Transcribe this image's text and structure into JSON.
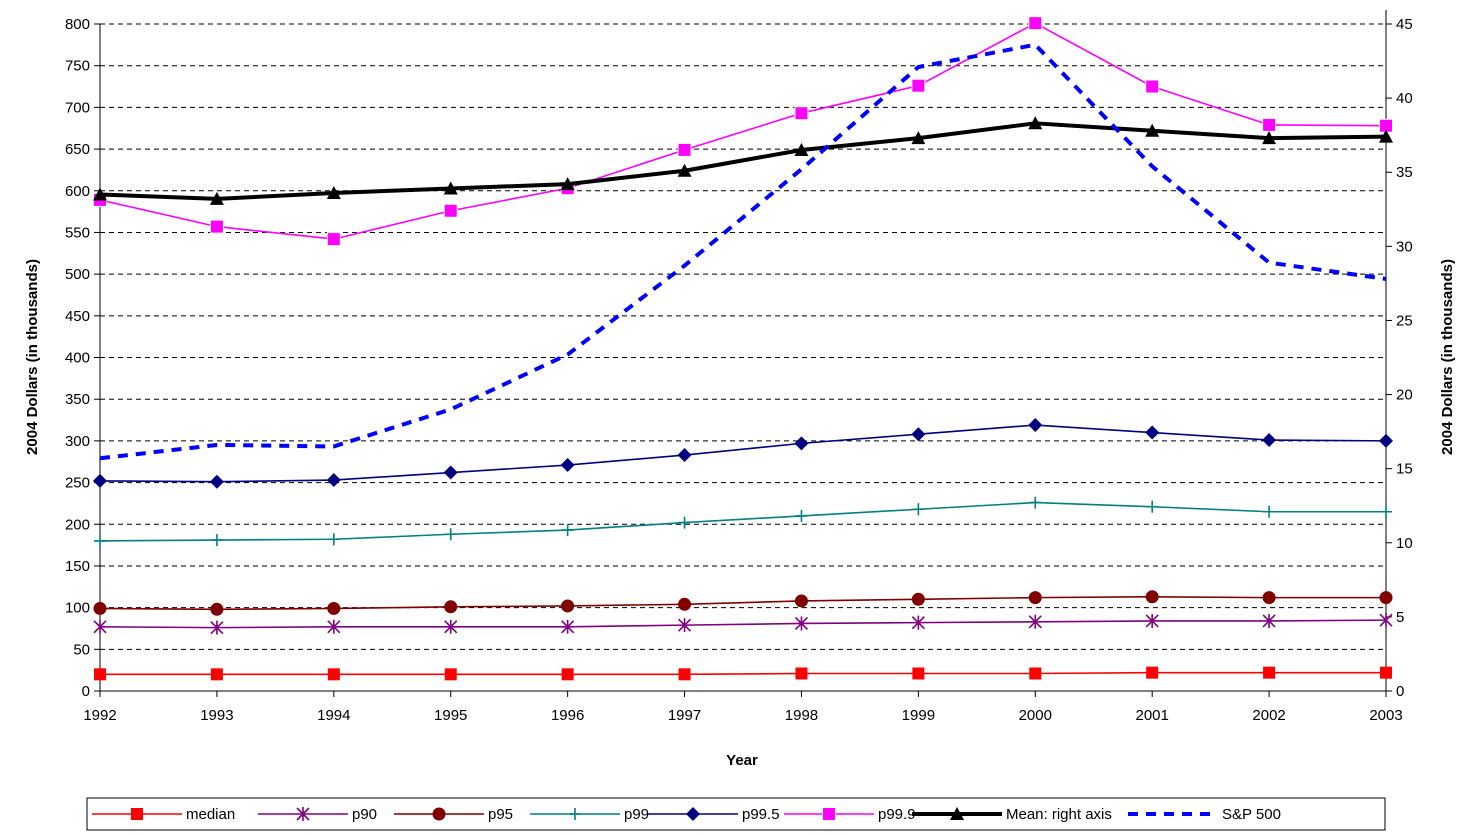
{
  "chart_data": {
    "type": "line",
    "xlabel": "Year",
    "ylabel_left": "2004 Dollars (in thousands)",
    "ylabel_right": "2004 Dollars (in thousands)",
    "ylim_left": [
      0,
      800
    ],
    "ylim_right": [
      0,
      45
    ],
    "yticks_left": [
      0,
      50,
      100,
      150,
      200,
      250,
      300,
      350,
      400,
      450,
      500,
      550,
      600,
      650,
      700,
      750,
      800
    ],
    "yticks_right": [
      0,
      5,
      10,
      15,
      20,
      25,
      30,
      35,
      40,
      45
    ],
    "grid": "horizontal dashed",
    "legend_position": "bottom",
    "x": [
      "1992",
      "1993",
      "1994",
      "1995",
      "1996",
      "1997",
      "1998",
      "1999",
      "2000",
      "2001",
      "2002",
      "2003"
    ],
    "series": [
      {
        "name": "median",
        "axis": "left",
        "color": "#FF0000",
        "marker": "square",
        "line": "solid",
        "values": [
          20,
          20,
          20,
          20,
          20,
          20,
          21,
          21,
          21,
          22,
          22,
          22
        ]
      },
      {
        "name": "p90",
        "axis": "left",
        "color": "#800080",
        "marker": "star",
        "line": "solid",
        "values": [
          77,
          76,
          77,
          77,
          77,
          79,
          81,
          82,
          83,
          84,
          84,
          85
        ]
      },
      {
        "name": "p95",
        "axis": "left",
        "color": "#800000",
        "marker": "circle",
        "line": "solid",
        "values": [
          99,
          98,
          99,
          101,
          102,
          104,
          108,
          110,
          112,
          113,
          112,
          112
        ]
      },
      {
        "name": "p99",
        "axis": "left",
        "color": "#008080",
        "marker": "plus",
        "line": "solid",
        "values": [
          180,
          181,
          182,
          188,
          193,
          202,
          210,
          218,
          226,
          221,
          215,
          215
        ]
      },
      {
        "name": "p99.5",
        "axis": "left",
        "color": "#000080",
        "marker": "diamond",
        "line": "solid",
        "values": [
          252,
          251,
          253,
          262,
          271,
          283,
          297,
          308,
          319,
          310,
          301,
          300
        ]
      },
      {
        "name": "p99.9",
        "axis": "left",
        "color": "#FF00FF",
        "marker": "square-open",
        "line": "solid",
        "values": [
          589,
          557,
          542,
          576,
          603,
          649,
          693,
          726,
          801,
          725,
          679,
          678
        ]
      },
      {
        "name": "Mean: right axis",
        "axis": "right",
        "color": "#000000",
        "marker": "triangle",
        "line": "solid-thick",
        "values": [
          33.5,
          33.2,
          33.6,
          33.9,
          34.2,
          35.1,
          36.5,
          37.3,
          38.3,
          37.8,
          37.3,
          37.4
        ]
      },
      {
        "name": "S&P 500",
        "axis": "right",
        "color": "#0000FF",
        "marker": "none",
        "line": "dashed-thick",
        "values": [
          15.7,
          16.6,
          16.5,
          19.0,
          22.7,
          28.7,
          35.2,
          42.1,
          43.6,
          35.4,
          28.9,
          27.8
        ]
      }
    ]
  }
}
